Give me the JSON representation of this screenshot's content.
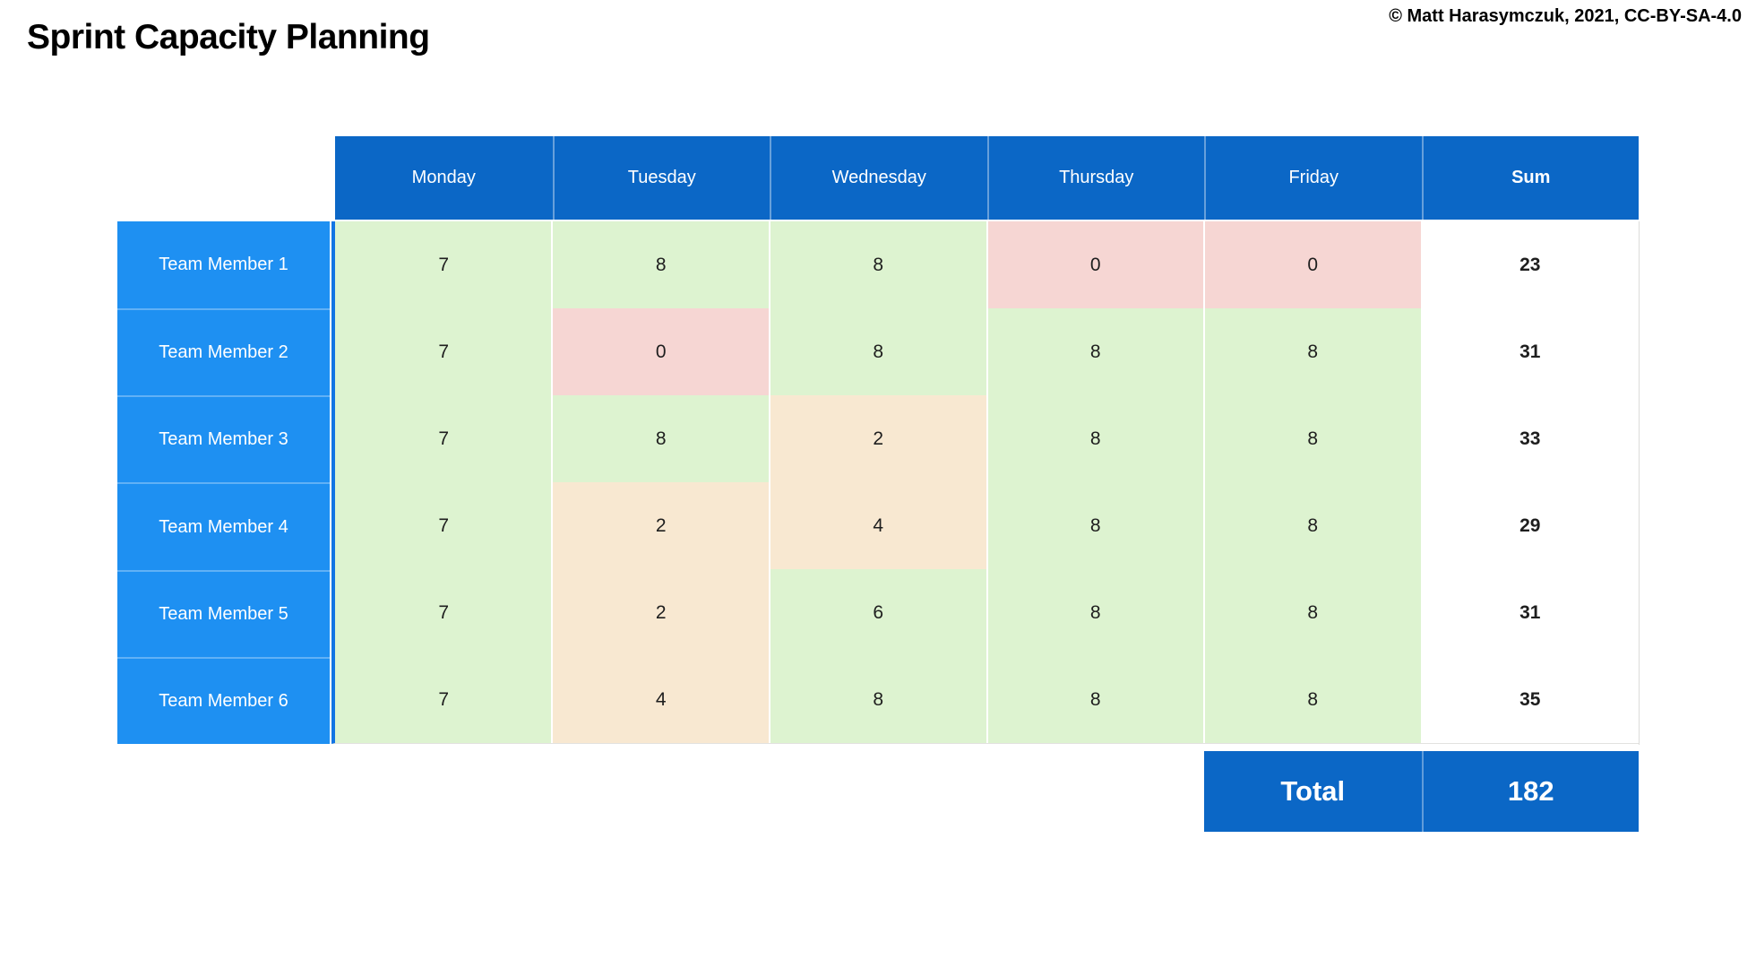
{
  "title": "Sprint Capacity Planning",
  "copyright": "© Matt Harasymczuk, 2021, CC-BY-SA-4.0",
  "colors": {
    "header_blue": "#0b67c6",
    "label_blue": "#1e90f2",
    "grid_accent": "#1274e4",
    "value_text": "#1e1e1e",
    "green": "#ddf3d0",
    "red": "#f6d6d3",
    "orange": "#f8e8d1"
  },
  "chart_data": {
    "type": "table",
    "title": "Sprint Capacity Planning",
    "columns": [
      "Monday",
      "Tuesday",
      "Wednesday",
      "Thursday",
      "Friday",
      "Sum"
    ],
    "rows": [
      {
        "label": "Team Member 1",
        "values": [
          7,
          8,
          8,
          0,
          0
        ],
        "sum": 23,
        "cell_colors": [
          "green",
          "green",
          "green",
          "red",
          "red"
        ]
      },
      {
        "label": "Team Member 2",
        "values": [
          7,
          0,
          8,
          8,
          8
        ],
        "sum": 31,
        "cell_colors": [
          "green",
          "red",
          "green",
          "green",
          "green"
        ]
      },
      {
        "label": "Team Member 3",
        "values": [
          7,
          8,
          2,
          8,
          8
        ],
        "sum": 33,
        "cell_colors": [
          "green",
          "green",
          "orange",
          "green",
          "green"
        ]
      },
      {
        "label": "Team Member 4",
        "values": [
          7,
          2,
          4,
          8,
          8
        ],
        "sum": 29,
        "cell_colors": [
          "green",
          "orange",
          "orange",
          "green",
          "green"
        ]
      },
      {
        "label": "Team Member 5",
        "values": [
          7,
          2,
          6,
          8,
          8
        ],
        "sum": 31,
        "cell_colors": [
          "green",
          "orange",
          "green",
          "green",
          "green"
        ]
      },
      {
        "label": "Team Member 6",
        "values": [
          7,
          4,
          8,
          8,
          8
        ],
        "sum": 35,
        "cell_colors": [
          "green",
          "orange",
          "green",
          "green",
          "green"
        ]
      }
    ],
    "total_label": "Total",
    "total_value": 182
  }
}
